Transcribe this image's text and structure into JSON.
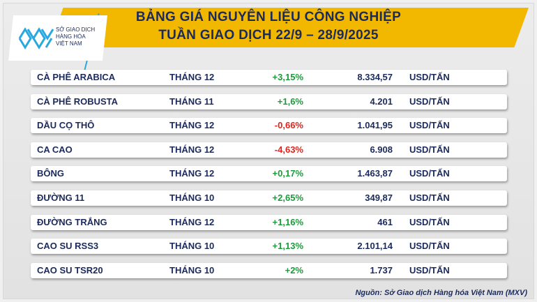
{
  "logo": {
    "line1": "SỞ GIAO DỊCH",
    "line2": "HÀNG HÓA",
    "line3": "VIỆT NAM"
  },
  "header": {
    "title_line1": "BẢNG GIÁ NGUYÊN LIỆU CÔNG NGHIỆP",
    "title_line2": "TUẦN GIAO DỊCH 22/9 – 28/9/2025"
  },
  "colors": {
    "band": "#f2b800",
    "navy": "#1b2a5c",
    "up": "#1a9c3a",
    "down": "#e0241b"
  },
  "rows": [
    {
      "name": "CÀ PHÊ ARABICA",
      "month": "THÁNG 12",
      "change": "+3,15%",
      "direction": "up",
      "price": "8.334,57",
      "unit": "USD/TẤN"
    },
    {
      "name": "CÀ PHÊ ROBUSTA",
      "month": "THÁNG 11",
      "change": "+1,6%",
      "direction": "up",
      "price": "4.201",
      "unit": "USD/TẤN"
    },
    {
      "name": "DẦU CỌ THÔ",
      "month": "THÁNG 12",
      "change": "-0,66%",
      "direction": "down",
      "price": "1.041,95",
      "unit": "USD/TẤN"
    },
    {
      "name": "CA CAO",
      "month": "THÁNG 12",
      "change": "-4,63%",
      "direction": "down",
      "price": "6.908",
      "unit": "USD/TẤN"
    },
    {
      "name": "BÔNG",
      "month": "THÁNG 12",
      "change": "+0,17%",
      "direction": "up",
      "price": "1.463,87",
      "unit": "USD/TẤN"
    },
    {
      "name": "ĐƯỜNG 11",
      "month": "THÁNG 10",
      "change": "+2,65%",
      "direction": "up",
      "price": "349,87",
      "unit": "USD/TẤN"
    },
    {
      "name": "ĐƯỜNG TRẮNG",
      "month": "THÁNG 12",
      "change": "+1,16%",
      "direction": "up",
      "price": "461",
      "unit": "USD/TẤN"
    },
    {
      "name": "CAO SU RSS3",
      "month": "THÁNG 10",
      "change": "+1,13%",
      "direction": "up",
      "price": "2.101,14",
      "unit": "USD/TẤN"
    },
    {
      "name": "CAO SU TSR20",
      "month": "THÁNG 10",
      "change": "+2%",
      "direction": "up",
      "price": "1.737",
      "unit": "USD/TẤN"
    }
  ],
  "source": "Nguồn: Sở Giao dịch Hàng hóa Việt Nam (MXV)"
}
